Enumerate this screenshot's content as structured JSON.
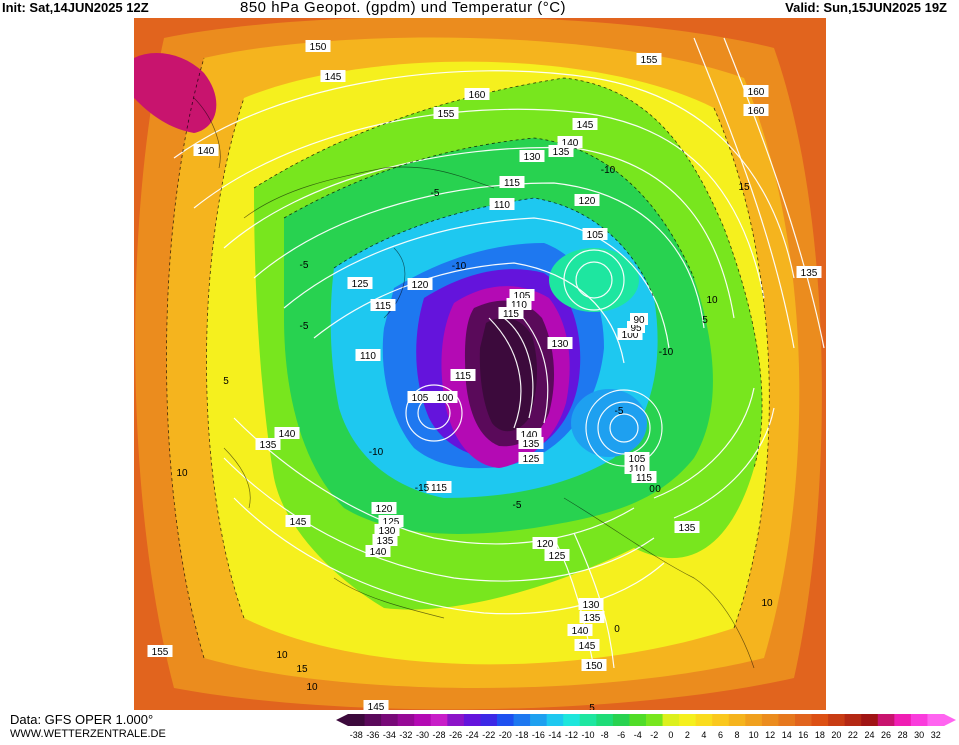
{
  "header": {
    "init": "Init: Sat,14JUN2025 12Z",
    "title": "850 hPa Geopot. (gpdm) und Temperatur (°C)",
    "valid": "Valid: Sun,15JUN2025 19Z"
  },
  "footer": {
    "source": "Data: GFS OPER 1.000°",
    "site": "WWW.WETTERZENTRALE.DE"
  },
  "colorbar": {
    "labels": [
      "-38",
      "-36",
      "-34",
      "-32",
      "-30",
      "-28",
      "-26",
      "-24",
      "-22",
      "-20",
      "-18",
      "-16",
      "-14",
      "-12",
      "-10",
      "-8",
      "-6",
      "-4",
      "-2",
      "0",
      "2",
      "4",
      "6",
      "8",
      "10",
      "12",
      "14",
      "16",
      "18",
      "20",
      "22",
      "24",
      "26",
      "28",
      "30",
      "32"
    ],
    "colors": [
      "#3c0a3c",
      "#5a0a5a",
      "#780a78",
      "#960a96",
      "#b40ab4",
      "#c81ec8",
      "#8c14c8",
      "#6414dc",
      "#3c28e6",
      "#1e50f0",
      "#1e78f0",
      "#1ea0f0",
      "#1ec8f0",
      "#1ee6dc",
      "#1ee6a0",
      "#1edc78",
      "#28d250",
      "#50dc28",
      "#78e61e",
      "#dcf01e",
      "#f5f01e",
      "#fadc1e",
      "#fac81e",
      "#f5b41e",
      "#f0a01e",
      "#eb8c1e",
      "#e6781e",
      "#e1641e",
      "#dc5014",
      "#c83c14",
      "#b42814",
      "#a01414",
      "#c8146e",
      "#f01eb4",
      "#fa3cdc",
      "#ff64f0"
    ]
  },
  "map_labels": {
    "geopotential": [
      {
        "text": "150"
      },
      {
        "text": "145"
      },
      {
        "text": "160"
      },
      {
        "text": "155"
      },
      {
        "text": "155"
      },
      {
        "text": "160"
      },
      {
        "text": "145"
      },
      {
        "text": "140"
      },
      {
        "text": "135"
      },
      {
        "text": "130"
      },
      {
        "text": "115"
      },
      {
        "text": "110"
      },
      {
        "text": "120"
      },
      {
        "text": "105"
      },
      {
        "text": "125"
      },
      {
        "text": "120"
      },
      {
        "text": "115"
      },
      {
        "text": "110"
      },
      {
        "text": "105"
      },
      {
        "text": "100"
      },
      {
        "text": "115"
      },
      {
        "text": "105"
      },
      {
        "text": "110"
      },
      {
        "text": "115"
      },
      {
        "text": "100"
      },
      {
        "text": "95"
      },
      {
        "text": "90"
      },
      {
        "text": "130"
      },
      {
        "text": "140"
      },
      {
        "text": "135"
      },
      {
        "text": "125"
      },
      {
        "text": "105"
      },
      {
        "text": "110"
      },
      {
        "text": "115"
      },
      {
        "text": "115"
      },
      {
        "text": "120"
      },
      {
        "text": "125"
      },
      {
        "text": "130"
      },
      {
        "text": "135"
      },
      {
        "text": "140"
      },
      {
        "text": "145"
      },
      {
        "text": "140"
      },
      {
        "text": "135"
      },
      {
        "text": "135"
      },
      {
        "text": "120"
      },
      {
        "text": "125"
      },
      {
        "text": "130"
      },
      {
        "text": "135"
      },
      {
        "text": "140"
      },
      {
        "text": "145"
      },
      {
        "text": "150"
      },
      {
        "text": "155"
      },
      {
        "text": "145"
      },
      {
        "text": "160"
      },
      {
        "text": "135"
      },
      {
        "text": "140"
      },
      {
        "text": "15"
      }
    ],
    "temperature": [
      {
        "text": "-10"
      },
      {
        "text": "-5"
      },
      {
        "text": "-5"
      },
      {
        "text": "-10"
      },
      {
        "text": "-5"
      },
      {
        "text": "-10"
      },
      {
        "text": "-15"
      },
      {
        "text": "-5"
      },
      {
        "text": "0"
      },
      {
        "text": "-10"
      },
      {
        "text": "-5"
      },
      {
        "text": "10"
      },
      {
        "text": "15"
      },
      {
        "text": "10"
      },
      {
        "text": "5"
      },
      {
        "text": "5"
      },
      {
        "text": "10"
      },
      {
        "text": "15"
      },
      {
        "text": "10"
      },
      {
        "text": "10"
      },
      {
        "text": "5"
      },
      {
        "text": "0"
      },
      {
        "text": "0"
      }
    ]
  }
}
